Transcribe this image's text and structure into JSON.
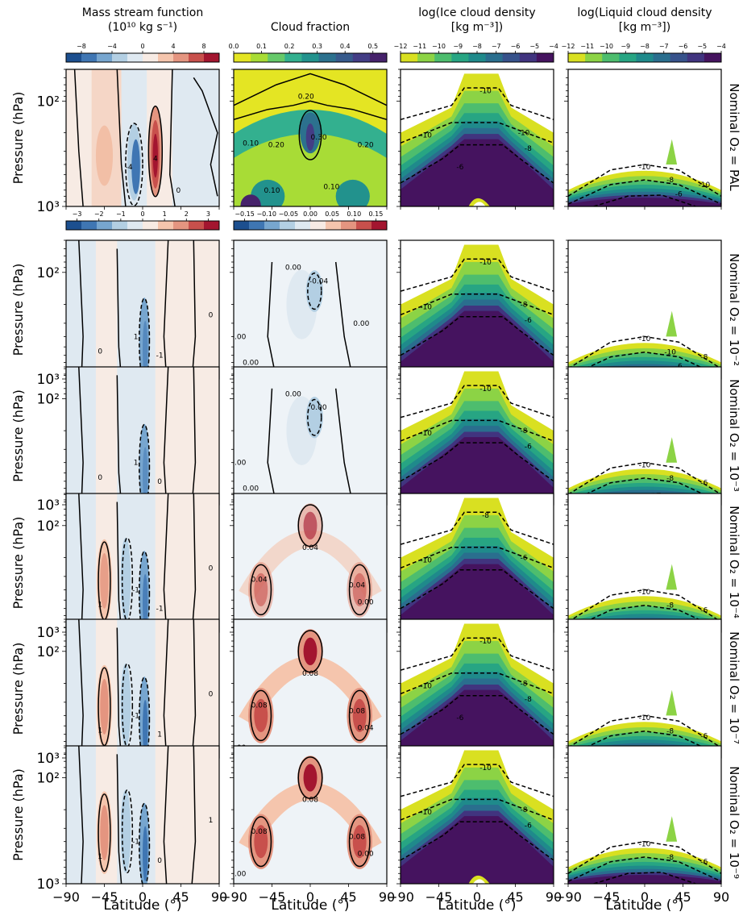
{
  "figure": {
    "x_ticks": [
      "-90",
      "-45",
      "0",
      "45",
      "90"
    ],
    "y_ticks": [
      "10²",
      "10³"
    ],
    "y_label": "Pressure (hPa)",
    "x_label": "Latitude (°)",
    "columns": [
      {
        "title_line1": "Mass stream function",
        "title_line2": "(10¹⁰ kg s⁻¹)"
      },
      {
        "title_line1": "Cloud fraction",
        "title_line2": ""
      },
      {
        "title_line1": "log(Ice cloud density",
        "title_line2": "[kg m⁻³])"
      },
      {
        "title_line1": "log(Liquid cloud density",
        "title_line2": "[kg m⁻³])"
      }
    ],
    "rows": [
      {
        "label": "Nominal O₂ = PAL"
      },
      {
        "label": "Nominal O₂ = 10⁻²"
      },
      {
        "label": "Nominal O₂ = 10⁻³"
      },
      {
        "label": "Nominal O₂ = 10⁻⁴"
      },
      {
        "label": "Nominal O₂ = 10⁻⁷"
      },
      {
        "label": "Nominal O₂ = 10⁻⁹"
      }
    ],
    "colorbars": {
      "streamfunction_abs": {
        "ticks": [
          "-8",
          "-4",
          "0",
          "4",
          "8"
        ],
        "range": [
          -10,
          10
        ],
        "colors": [
          "#1c4f8f",
          "#3f76b3",
          "#77a6cf",
          "#b3cfe3",
          "#dfe9f1",
          "#f7ebe4",
          "#f5c5ad",
          "#e49580",
          "#c8504c",
          "#a3152f"
        ]
      },
      "cloudfrac_abs": {
        "ticks": [
          "0.0",
          "0.1",
          "0.2",
          "0.3",
          "0.4",
          "0.5"
        ],
        "range": [
          0,
          0.55
        ],
        "colors": [
          "#e4e523",
          "#a8dc36",
          "#66c96a",
          "#33b08f",
          "#22928d",
          "#2c718e",
          "#375a8c",
          "#433d85",
          "#46226b"
        ]
      },
      "streamfunction_diff": {
        "ticks": [
          "-3",
          "-2",
          "-1",
          "0",
          "1",
          "2",
          "3"
        ],
        "range": [
          -3.5,
          3.5
        ],
        "colors": [
          "#1c4f8f",
          "#3f76b3",
          "#77a6cf",
          "#b3cfe3",
          "#dfe9f1",
          "#f7ebe4",
          "#f5c5ad",
          "#e49580",
          "#c8504c",
          "#a3152f"
        ]
      },
      "cloudfrac_diff": {
        "ticks": [
          "-0.15",
          "-0.10",
          "-0.05",
          "0.00",
          "0.05",
          "0.10",
          "0.15"
        ],
        "range": [
          -0.175,
          0.175
        ],
        "colors": [
          "#1c4f8f",
          "#3f76b3",
          "#77a6cf",
          "#b3cfe3",
          "#dfe9f1",
          "#f7ebe4",
          "#f5c5ad",
          "#e49580",
          "#c8504c",
          "#a3152f"
        ]
      },
      "ice": {
        "ticks": [
          "-12",
          "-11",
          "-10",
          "-9",
          "-8",
          "-7",
          "-6",
          "-5",
          "-4"
        ],
        "range": [
          -12,
          -4
        ],
        "colors": [
          "#d9e021",
          "#8cd345",
          "#4dbd6e",
          "#27a583",
          "#1f8a8b",
          "#2a6e8e",
          "#37528b",
          "#41347f",
          "#45135f"
        ]
      },
      "liquid": {
        "ticks": [
          "-12",
          "-11",
          "-10",
          "-9",
          "-8",
          "-7",
          "-6",
          "-5",
          "-4"
        ],
        "range": [
          -12,
          -4
        ],
        "colors": [
          "#d9e021",
          "#8cd345",
          "#4dbd6e",
          "#27a583",
          "#1f8a8b",
          "#2a6e8e",
          "#37528b",
          "#41347f",
          "#45135f"
        ]
      }
    }
  },
  "chart_data": {
    "type": "heatmap",
    "description_panels": "6 rows (O2 levels) x 4 columns (fields); latitude-pressure cross sections",
    "x": {
      "label": "Latitude (°)",
      "range": [
        -90,
        90
      ],
      "ticks": [
        -90,
        -45,
        0,
        45,
        90
      ]
    },
    "y": {
      "label": "Pressure (hPa)",
      "scale": "log",
      "range": [
        1000,
        50
      ],
      "inverted": true,
      "ticks": [
        100,
        1000
      ]
    },
    "fields": [
      {
        "name": "Mass stream function",
        "units": "10^10 kg s^-1",
        "rows": [
          {
            "row": "PAL",
            "contour_labels": [
              "-4",
              "4",
              "0"
            ],
            "cells": [
              {
                "lat": -45,
                "p": 400,
                "v": 2
              },
              {
                "lat": -5,
                "p": 400,
                "v": -5
              },
              {
                "lat": 15,
                "p": 300,
                "v": 8
              }
            ]
          },
          {
            "row": "1e-2",
            "contour_labels": [
              "0",
              "1",
              "-1",
              "0"
            ],
            "cells": [
              {
                "lat": 5,
                "p": 400,
                "v": -2
              },
              {
                "lat": -45,
                "p": 300,
                "v": 0.3
              }
            ]
          },
          {
            "row": "1e-3",
            "contour_labels": [
              "0",
              "1",
              "0"
            ],
            "cells": [
              {
                "lat": 5,
                "p": 450,
                "v": -1.5
              }
            ]
          },
          {
            "row": "1e-4",
            "contour_labels": [
              "1",
              "-1",
              "-1",
              "0",
              "0"
            ],
            "cells": [
              {
                "lat": -45,
                "p": 300,
                "v": 1.2
              },
              {
                "lat": 0,
                "p": 400,
                "v": -1.5
              }
            ]
          },
          {
            "row": "1e-7",
            "contour_labels": [
              "1",
              "-1",
              "1",
              "0",
              "1",
              "0"
            ],
            "cells": [
              {
                "lat": -45,
                "p": 300,
                "v": 1.5
              },
              {
                "lat": -15,
                "p": 400,
                "v": -2
              }
            ]
          },
          {
            "row": "1e-9",
            "contour_labels": [
              "1",
              "-1",
              "0",
              "1"
            ],
            "cells": [
              {
                "lat": -45,
                "p": 300,
                "v": 1.5
              },
              {
                "lat": -15,
                "p": 400,
                "v": -2
              }
            ]
          }
        ]
      },
      {
        "name": "Cloud fraction",
        "units": "",
        "rows": [
          {
            "row": "PAL",
            "contour_labels": [
              "0.20",
              "0.10",
              "0.20",
              "0.30",
              "0.20",
              "0.10",
              "0.10"
            ]
          },
          {
            "row": "1e-2",
            "contour_labels": [
              "0.00",
              "-0.04",
              "0.00",
              "0.00",
              "0.00"
            ]
          },
          {
            "row": "1e-3",
            "contour_labels": [
              "0.00",
              "0.00",
              "0.00",
              "0.00"
            ]
          },
          {
            "row": "1e-4",
            "contour_labels": [
              "0.04",
              "0.04",
              "0.04",
              "0.00",
              "0.04"
            ]
          },
          {
            "row": "1e-7",
            "contour_labels": [
              "0.08",
              "0.08",
              "0.08",
              "0.04",
              "0.00"
            ]
          },
          {
            "row": "1e-9",
            "contour_labels": [
              "0.08",
              "0.08",
              "0.08",
              "0.00",
              "0.00"
            ]
          }
        ]
      },
      {
        "name": "log(Ice cloud density)",
        "units": "kg m^-3",
        "rows": [
          {
            "row": "PAL",
            "contour_labels": [
              "-10",
              "-10",
              "-10",
              "-8",
              "-6"
            ]
          },
          {
            "row": "1e-2",
            "contour_labels": [
              "-10",
              "-10",
              "-8",
              "-6"
            ]
          },
          {
            "row": "1e-3",
            "contour_labels": [
              "-10",
              "-10",
              "-8",
              "-6"
            ]
          },
          {
            "row": "1e-4",
            "contour_labels": [
              "-10",
              "-8",
              "-6"
            ]
          },
          {
            "row": "1e-7",
            "contour_labels": [
              "-10",
              "-10",
              "-8",
              "-8",
              "-6"
            ]
          },
          {
            "row": "1e-9",
            "contour_labels": [
              "-10",
              "-10",
              "-8",
              "-6"
            ]
          }
        ]
      },
      {
        "name": "log(Liquid cloud density)",
        "units": "kg m^-3",
        "rows": [
          {
            "row": "PAL",
            "contour_labels": [
              "-10",
              "-8",
              "-10",
              "-6"
            ]
          },
          {
            "row": "1e-2",
            "contour_labels": [
              "-10",
              "-10",
              "-8",
              "-6"
            ]
          },
          {
            "row": "1e-3",
            "contour_labels": [
              "-10",
              "-8",
              "-6"
            ]
          },
          {
            "row": "1e-4",
            "contour_labels": [
              "-10",
              "-8",
              "-6"
            ]
          },
          {
            "row": "1e-7",
            "contour_labels": [
              "-10",
              "-8",
              "-6"
            ]
          },
          {
            "row": "1e-9",
            "contour_labels": [
              "-10",
              "-8",
              "-6"
            ]
          }
        ]
      }
    ]
  }
}
